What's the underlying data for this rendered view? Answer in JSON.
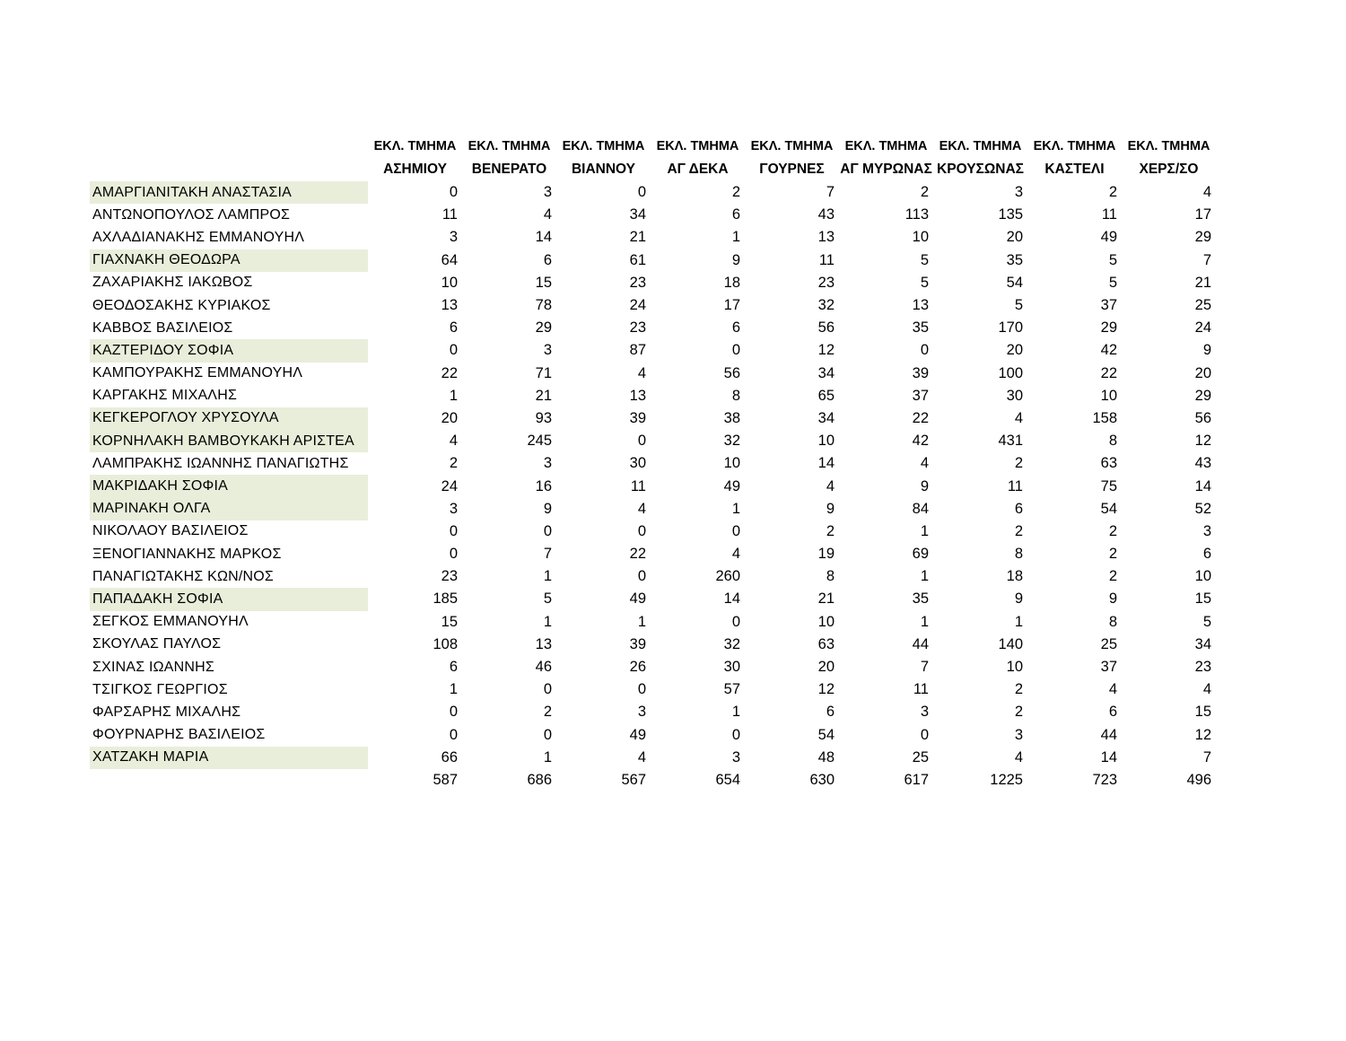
{
  "table": {
    "header_row1_label": "ΕΚΛ. ΤΜΗΜΑ",
    "columns": [
      "ΑΣΗΜΙΟΥ",
      "ΒΕΝΕΡΑΤΟ",
      "ΒΙΑΝΝΟΥ",
      "ΑΓ ΔΕΚΑ",
      "ΓΟΥΡΝΕΣ",
      "ΑΓ ΜΥΡΩΝΑΣ",
      "ΚΡΟΥΣΩΝΑΣ",
      "ΚΑΣΤΕΛΙ",
      "ΧΕΡΣ/ΣΟ"
    ],
    "highlight_color": "#e9eedb",
    "rows": [
      {
        "name": "ΑΜΑΡΓΙΑΝΙΤΑΚΗ ΑΝΑΣΤΑΣΙΑ",
        "highlighted": true,
        "values": [
          0,
          3,
          0,
          2,
          7,
          2,
          3,
          2,
          4
        ]
      },
      {
        "name": "ΑΝΤΩΝΟΠΟΥΛΟΣ ΛΑΜΠΡΟΣ",
        "highlighted": false,
        "values": [
          11,
          4,
          34,
          6,
          43,
          113,
          135,
          11,
          17
        ]
      },
      {
        "name": "ΑΧΛΑΔΙΑΝΑΚΗΣ ΕΜΜΑΝΟΥΗΛ",
        "highlighted": false,
        "values": [
          3,
          14,
          21,
          1,
          13,
          10,
          20,
          49,
          29
        ]
      },
      {
        "name": "ΓΙΑΧΝΑΚΗ ΘΕΟΔΩΡΑ",
        "highlighted": true,
        "values": [
          64,
          6,
          61,
          9,
          11,
          5,
          35,
          5,
          7
        ]
      },
      {
        "name": "ΖΑΧΑΡΙΑΚΗΣ ΙΑΚΩΒΟΣ",
        "highlighted": false,
        "values": [
          10,
          15,
          23,
          18,
          23,
          5,
          54,
          5,
          21
        ]
      },
      {
        "name": "ΘΕΟΔΟΣΑΚΗΣ ΚΥΡΙΑΚΟΣ",
        "highlighted": false,
        "values": [
          13,
          78,
          24,
          17,
          32,
          13,
          5,
          37,
          25
        ]
      },
      {
        "name": "ΚΑΒΒΟΣ ΒΑΣΙΛΕΙΟΣ",
        "highlighted": false,
        "values": [
          6,
          29,
          23,
          6,
          56,
          35,
          170,
          29,
          24
        ]
      },
      {
        "name": "ΚΑΖΤΕΡΙΔΟΥ ΣΟΦΙΑ",
        "highlighted": true,
        "values": [
          0,
          3,
          87,
          0,
          12,
          0,
          20,
          42,
          9
        ]
      },
      {
        "name": "ΚΑΜΠΟΥΡΑΚΗΣ ΕΜΜΑΝΟΥΗΛ",
        "highlighted": false,
        "values": [
          22,
          71,
          4,
          56,
          34,
          39,
          100,
          22,
          20
        ]
      },
      {
        "name": "ΚΑΡΓΑΚΗΣ ΜΙΧΑΛΗΣ",
        "highlighted": false,
        "values": [
          1,
          21,
          13,
          8,
          65,
          37,
          30,
          10,
          29
        ]
      },
      {
        "name": "ΚΕΓΚΕΡΟΓΛΟΥ ΧΡΥΣΟΥΛΑ",
        "highlighted": true,
        "values": [
          20,
          93,
          39,
          38,
          34,
          22,
          4,
          158,
          56
        ]
      },
      {
        "name": "ΚΟΡΝΗΛΑΚΗ ΒΑΜΒΟΥΚΑΚΗ ΑΡΙΣΤΕΑ",
        "highlighted": true,
        "values": [
          4,
          245,
          0,
          32,
          10,
          42,
          431,
          8,
          12
        ]
      },
      {
        "name": "ΛΑΜΠΡΑΚΗΣ ΙΩΑΝΝΗΣ ΠΑΝΑΓΙΩΤΗΣ",
        "highlighted": false,
        "values": [
          2,
          3,
          30,
          10,
          14,
          4,
          2,
          63,
          43
        ]
      },
      {
        "name": "ΜΑΚΡΙΔΑΚΗ ΣΟΦΙΑ",
        "highlighted": true,
        "values": [
          24,
          16,
          11,
          49,
          4,
          9,
          11,
          75,
          14
        ]
      },
      {
        "name": "ΜΑΡΙΝΑΚΗ ΟΛΓΑ",
        "highlighted": true,
        "values": [
          3,
          9,
          4,
          1,
          9,
          84,
          6,
          54,
          52
        ]
      },
      {
        "name": "ΝΙΚΟΛΑΟΥ ΒΑΣΙΛΕΙΟΣ",
        "highlighted": false,
        "values": [
          0,
          0,
          0,
          0,
          2,
          1,
          2,
          2,
          3
        ]
      },
      {
        "name": "ΞΕΝΟΓΙΑΝΝΑΚΗΣ ΜΑΡΚΟΣ",
        "highlighted": false,
        "values": [
          0,
          7,
          22,
          4,
          19,
          69,
          8,
          2,
          6
        ]
      },
      {
        "name": "ΠΑΝΑΓΙΩΤΑΚΗΣ ΚΩΝ/ΝΟΣ",
        "highlighted": false,
        "values": [
          23,
          1,
          0,
          260,
          8,
          1,
          18,
          2,
          10
        ]
      },
      {
        "name": "ΠΑΠΑΔΑΚΗ ΣΟΦΙΑ",
        "highlighted": true,
        "values": [
          185,
          5,
          49,
          14,
          21,
          35,
          9,
          9,
          15
        ]
      },
      {
        "name": "ΣΕΓΚΟΣ ΕΜΜΑΝΟΥΗΛ",
        "highlighted": false,
        "values": [
          15,
          1,
          1,
          0,
          10,
          1,
          1,
          8,
          5
        ]
      },
      {
        "name": "ΣΚΟΥΛΑΣ ΠΑΥΛΟΣ",
        "highlighted": false,
        "values": [
          108,
          13,
          39,
          32,
          63,
          44,
          140,
          25,
          34
        ]
      },
      {
        "name": "ΣΧΙΝΑΣ ΙΩΑΝΝΗΣ",
        "highlighted": false,
        "values": [
          6,
          46,
          26,
          30,
          20,
          7,
          10,
          37,
          23
        ]
      },
      {
        "name": "ΤΣΙΓΚΟΣ ΓΕΩΡΓΙΟΣ",
        "highlighted": false,
        "values": [
          1,
          0,
          0,
          57,
          12,
          11,
          2,
          4,
          4
        ]
      },
      {
        "name": "ΦΑΡΣΑΡΗΣ ΜΙΧΑΛΗΣ",
        "highlighted": false,
        "values": [
          0,
          2,
          3,
          1,
          6,
          3,
          2,
          6,
          15
        ]
      },
      {
        "name": "ΦΟΥΡΝΑΡΗΣ ΒΑΣΙΛΕΙΟΣ",
        "highlighted": false,
        "values": [
          0,
          0,
          49,
          0,
          54,
          0,
          3,
          44,
          12
        ]
      },
      {
        "name": "ΧΑΤΖΑΚΗ ΜΑΡΙΑ",
        "highlighted": true,
        "values": [
          66,
          1,
          4,
          3,
          48,
          25,
          4,
          14,
          7
        ]
      }
    ],
    "totals": [
      587,
      686,
      567,
      654,
      630,
      617,
      1225,
      723,
      496
    ]
  }
}
